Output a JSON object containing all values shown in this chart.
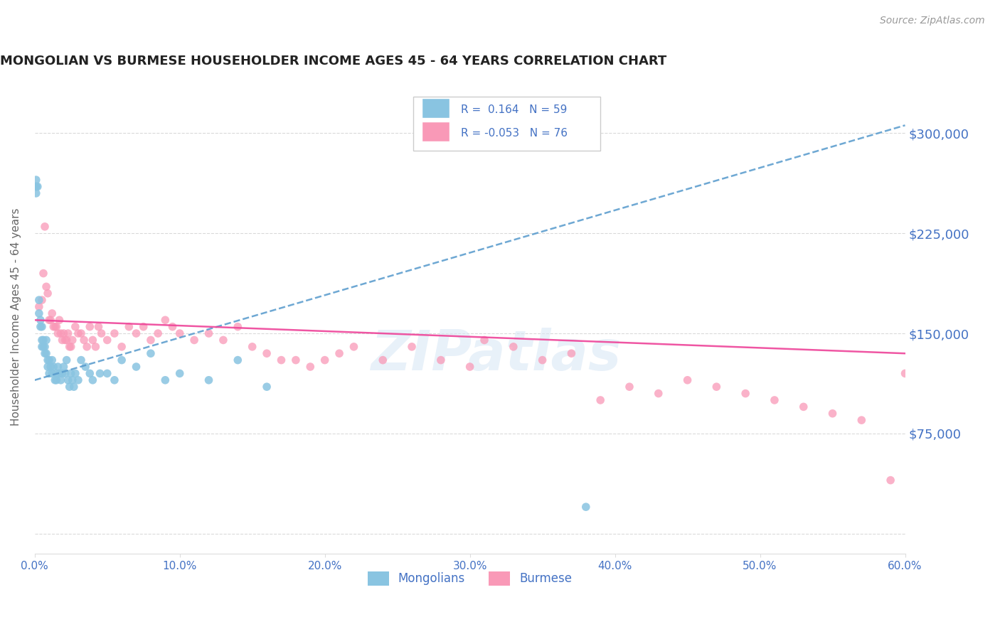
{
  "title": "MONGOLIAN VS BURMESE HOUSEHOLDER INCOME AGES 45 - 64 YEARS CORRELATION CHART",
  "source": "Source: ZipAtlas.com",
  "ylabel": "Householder Income Ages 45 - 64 years",
  "xlim": [
    0.0,
    0.6
  ],
  "ylim": [
    -15000,
    340000
  ],
  "yticks": [
    0,
    75000,
    150000,
    225000,
    300000
  ],
  "ytick_labels": [
    "",
    "$75,000",
    "$150,000",
    "$225,000",
    "$300,000"
  ],
  "xticks": [
    0.0,
    0.1,
    0.2,
    0.3,
    0.4,
    0.5,
    0.6
  ],
  "xtick_labels": [
    "0.0%",
    "10.0%",
    "20.0%",
    "30.0%",
    "40.0%",
    "50.0%",
    "60.0%"
  ],
  "mongolian_color": "#89c4e1",
  "burmese_color": "#f999b7",
  "mongolian_line_color": "#5599cc",
  "burmese_line_color": "#ee4499",
  "R_mongolian": 0.164,
  "N_mongolian": 59,
  "R_burmese": -0.053,
  "N_burmese": 76,
  "legend_mongolians": "Mongolians",
  "legend_burmese": "Burmese",
  "watermark": "ZIPatlas",
  "axis_color": "#4472c4",
  "grid_color": "#c0c0c0",
  "mongolian_x": [
    0.001,
    0.001,
    0.001,
    0.001,
    0.002,
    0.003,
    0.003,
    0.004,
    0.004,
    0.005,
    0.005,
    0.005,
    0.006,
    0.006,
    0.007,
    0.007,
    0.008,
    0.008,
    0.009,
    0.009,
    0.01,
    0.01,
    0.011,
    0.012,
    0.012,
    0.013,
    0.014,
    0.015,
    0.015,
    0.016,
    0.017,
    0.018,
    0.019,
    0.02,
    0.021,
    0.022,
    0.023,
    0.024,
    0.025,
    0.026,
    0.027,
    0.028,
    0.03,
    0.032,
    0.035,
    0.038,
    0.04,
    0.045,
    0.05,
    0.055,
    0.06,
    0.07,
    0.08,
    0.09,
    0.1,
    0.12,
    0.14,
    0.16,
    0.38
  ],
  "mongolian_y": [
    260000,
    265000,
    260000,
    255000,
    260000,
    175000,
    165000,
    160000,
    155000,
    155000,
    145000,
    140000,
    145000,
    140000,
    140000,
    135000,
    145000,
    135000,
    130000,
    125000,
    130000,
    120000,
    125000,
    130000,
    120000,
    125000,
    115000,
    120000,
    115000,
    125000,
    120000,
    115000,
    120000,
    125000,
    120000,
    130000,
    115000,
    110000,
    120000,
    115000,
    110000,
    120000,
    115000,
    130000,
    125000,
    120000,
    115000,
    120000,
    120000,
    115000,
    130000,
    125000,
    135000,
    115000,
    120000,
    115000,
    130000,
    110000,
    20000
  ],
  "burmese_x": [
    0.003,
    0.005,
    0.006,
    0.007,
    0.008,
    0.009,
    0.01,
    0.011,
    0.012,
    0.013,
    0.014,
    0.015,
    0.016,
    0.017,
    0.018,
    0.019,
    0.02,
    0.021,
    0.022,
    0.023,
    0.024,
    0.025,
    0.026,
    0.028,
    0.03,
    0.032,
    0.034,
    0.036,
    0.038,
    0.04,
    0.042,
    0.044,
    0.046,
    0.05,
    0.055,
    0.06,
    0.065,
    0.07,
    0.075,
    0.08,
    0.085,
    0.09,
    0.095,
    0.1,
    0.11,
    0.12,
    0.13,
    0.14,
    0.15,
    0.16,
    0.17,
    0.18,
    0.19,
    0.2,
    0.21,
    0.22,
    0.24,
    0.26,
    0.28,
    0.3,
    0.31,
    0.33,
    0.35,
    0.37,
    0.39,
    0.41,
    0.43,
    0.45,
    0.47,
    0.49,
    0.51,
    0.53,
    0.55,
    0.57,
    0.59,
    0.6
  ],
  "burmese_y": [
    170000,
    175000,
    195000,
    230000,
    185000,
    180000,
    160000,
    160000,
    165000,
    155000,
    155000,
    155000,
    150000,
    160000,
    150000,
    145000,
    150000,
    145000,
    145000,
    150000,
    140000,
    140000,
    145000,
    155000,
    150000,
    150000,
    145000,
    140000,
    155000,
    145000,
    140000,
    155000,
    150000,
    145000,
    150000,
    140000,
    155000,
    150000,
    155000,
    145000,
    150000,
    160000,
    155000,
    150000,
    145000,
    150000,
    145000,
    155000,
    140000,
    135000,
    130000,
    130000,
    125000,
    130000,
    135000,
    140000,
    130000,
    140000,
    130000,
    125000,
    145000,
    140000,
    130000,
    135000,
    100000,
    110000,
    105000,
    115000,
    110000,
    105000,
    100000,
    95000,
    90000,
    85000,
    40000,
    120000
  ]
}
